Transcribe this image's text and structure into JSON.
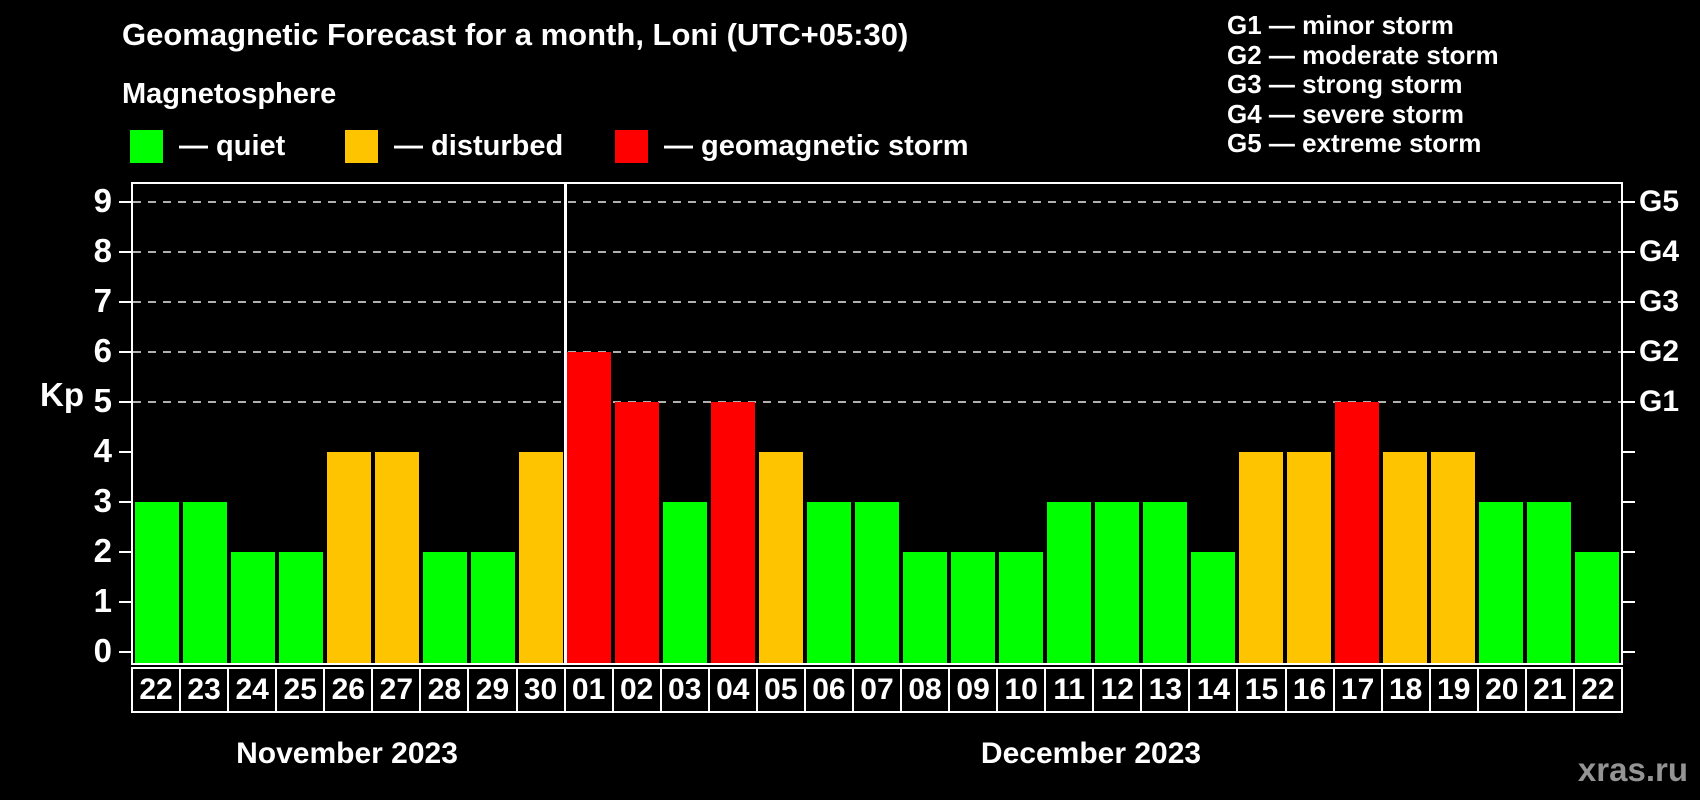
{
  "title": "Geomagnetic Forecast for a month, Loni (UTC+05:30)",
  "subtitle": "Magnetosphere",
  "legend": {
    "items": [
      {
        "key": "quiet",
        "label": "— quiet"
      },
      {
        "key": "disturbed",
        "label": "— disturbed"
      },
      {
        "key": "storm",
        "label": "— geomagnetic storm"
      }
    ]
  },
  "g_legend": [
    "G1 — minor storm",
    "G2 — moderate storm",
    "G3 — strong storm",
    "G4 — severe storm",
    "G5 — extreme storm"
  ],
  "watermark": "xras.ru",
  "chart_data": {
    "type": "bar",
    "title": "Geomagnetic Forecast for a month, Loni (UTC+05:30)",
    "ylabel": "Kp",
    "ylim": [
      0,
      9
    ],
    "y_ticks": [
      0,
      1,
      2,
      3,
      4,
      5,
      6,
      7,
      8,
      9
    ],
    "gridline_values": [
      5,
      6,
      7,
      8,
      9
    ],
    "grid": "dashed horizontal at storm levels only",
    "legend_position": "top",
    "colors": {
      "quiet": "#00ff00",
      "disturbed": "#ffc400",
      "storm": "#ff0000",
      "gridline": "#b0b0b0",
      "background": "#000000",
      "text": "#ffffff"
    },
    "right_axis": [
      {
        "value": 5,
        "label": "G1"
      },
      {
        "value": 6,
        "label": "G2"
      },
      {
        "value": 7,
        "label": "G3"
      },
      {
        "value": 8,
        "label": "G4"
      },
      {
        "value": 9,
        "label": "G5"
      }
    ],
    "months": [
      {
        "label": "November 2023",
        "days": [
          {
            "day": "22",
            "kp": 3,
            "status": "quiet"
          },
          {
            "day": "23",
            "kp": 3,
            "status": "quiet"
          },
          {
            "day": "24",
            "kp": 2,
            "status": "quiet"
          },
          {
            "day": "25",
            "kp": 2,
            "status": "quiet"
          },
          {
            "day": "26",
            "kp": 4,
            "status": "disturbed"
          },
          {
            "day": "27",
            "kp": 4,
            "status": "disturbed"
          },
          {
            "day": "28",
            "kp": 2,
            "status": "quiet"
          },
          {
            "day": "29",
            "kp": 2,
            "status": "quiet"
          },
          {
            "day": "30",
            "kp": 4,
            "status": "disturbed"
          }
        ]
      },
      {
        "label": "December 2023",
        "days": [
          {
            "day": "01",
            "kp": 6,
            "status": "storm"
          },
          {
            "day": "02",
            "kp": 5,
            "status": "storm"
          },
          {
            "day": "03",
            "kp": 3,
            "status": "quiet"
          },
          {
            "day": "04",
            "kp": 5,
            "status": "storm"
          },
          {
            "day": "05",
            "kp": 4,
            "status": "disturbed"
          },
          {
            "day": "06",
            "kp": 3,
            "status": "quiet"
          },
          {
            "day": "07",
            "kp": 3,
            "status": "quiet"
          },
          {
            "day": "08",
            "kp": 2,
            "status": "quiet"
          },
          {
            "day": "09",
            "kp": 2,
            "status": "quiet"
          },
          {
            "day": "10",
            "kp": 2,
            "status": "quiet"
          },
          {
            "day": "11",
            "kp": 3,
            "status": "quiet"
          },
          {
            "day": "12",
            "kp": 3,
            "status": "quiet"
          },
          {
            "day": "13",
            "kp": 3,
            "status": "quiet"
          },
          {
            "day": "14",
            "kp": 2,
            "status": "quiet"
          },
          {
            "day": "15",
            "kp": 4,
            "status": "disturbed"
          },
          {
            "day": "16",
            "kp": 4,
            "status": "disturbed"
          },
          {
            "day": "17",
            "kp": 5,
            "status": "storm"
          },
          {
            "day": "18",
            "kp": 4,
            "status": "disturbed"
          },
          {
            "day": "19",
            "kp": 4,
            "status": "disturbed"
          },
          {
            "day": "20",
            "kp": 3,
            "status": "quiet"
          },
          {
            "day": "21",
            "kp": 3,
            "status": "quiet"
          },
          {
            "day": "22",
            "kp": 2,
            "status": "quiet"
          }
        ]
      }
    ]
  }
}
